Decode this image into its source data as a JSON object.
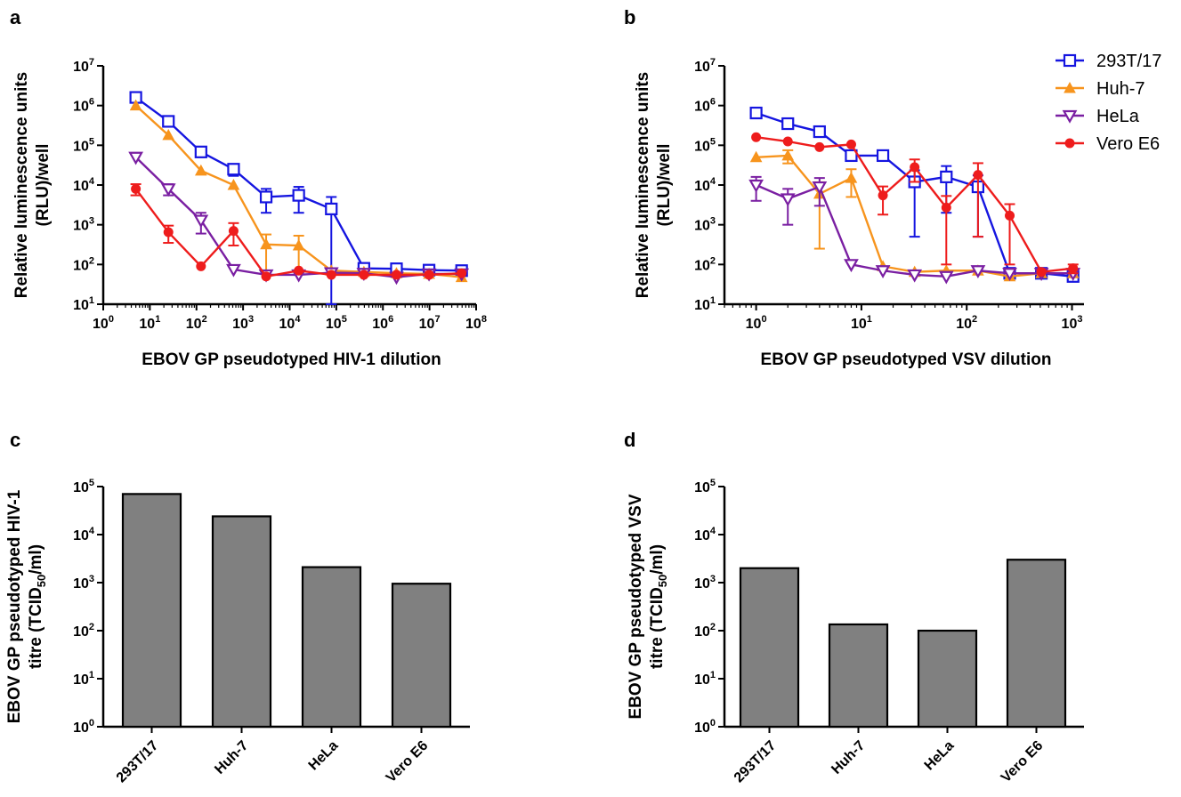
{
  "colors": {
    "293T/17": "#1515e0",
    "Huh-7": "#f7941d",
    "HeLa": "#7a1fa2",
    "Vero E6": "#ee1c1c",
    "bar": "#808080"
  },
  "legend": {
    "placement": "top-right of panel b",
    "items": [
      {
        "label": "293T/17",
        "marker": "open-square"
      },
      {
        "label": "Huh-7",
        "marker": "filled-triangle-up"
      },
      {
        "label": "HeLa",
        "marker": "open-triangle-down"
      },
      {
        "label": "Vero E6",
        "marker": "filled-circle"
      }
    ]
  },
  "chart_data": [
    {
      "panel": "a",
      "type": "line",
      "xscale": "log",
      "yscale": "log",
      "xlim": [
        1,
        100000000
      ],
      "ylim": [
        10,
        10000000
      ],
      "xlabel": "EBOV GP pseudotyped HIV-1 dilution",
      "ylabel_lines": [
        "Relative luminescence units",
        "(RLU)/well"
      ],
      "xticks": [
        {
          "base": "10",
          "exp": "0"
        },
        {
          "base": "10",
          "exp": "1"
        },
        {
          "base": "10",
          "exp": "2"
        },
        {
          "base": "10",
          "exp": "3"
        },
        {
          "base": "10",
          "exp": "4"
        },
        {
          "base": "10",
          "exp": "5"
        },
        {
          "base": "10",
          "exp": "6"
        },
        {
          "base": "10",
          "exp": "7"
        },
        {
          "base": "10",
          "exp": "8"
        }
      ],
      "yticks": [
        {
          "base": "10",
          "exp": "1"
        },
        {
          "base": "10",
          "exp": "2"
        },
        {
          "base": "10",
          "exp": "3"
        },
        {
          "base": "10",
          "exp": "4"
        },
        {
          "base": "10",
          "exp": "5"
        },
        {
          "base": "10",
          "exp": "6"
        },
        {
          "base": "10",
          "exp": "7"
        }
      ],
      "x": [
        5,
        25,
        125,
        625,
        3125,
        15625,
        78125,
        390625,
        1953125,
        9765625,
        48828125
      ],
      "series": [
        {
          "name": "293T/17",
          "values": [
            1600000,
            400000,
            68000,
            25000,
            5000,
            5500,
            2500,
            80,
            78,
            72,
            70
          ],
          "err": [
            0,
            0,
            0,
            8000,
            3000,
            3500,
            2500,
            0,
            0,
            0,
            0
          ]
        },
        {
          "name": "Huh-7",
          "values": [
            1000000,
            180000,
            23000,
            10000,
            320,
            300,
            70,
            65,
            60,
            58,
            48
          ],
          "err": [
            0,
            0,
            0,
            0,
            250,
            230,
            0,
            0,
            0,
            0,
            0
          ]
        },
        {
          "name": "HeLa",
          "values": [
            50000,
            8000,
            1300,
            75,
            55,
            55,
            62,
            60,
            48,
            58,
            58
          ],
          "err": [
            0,
            2500,
            700,
            0,
            0,
            0,
            0,
            0,
            0,
            0,
            0
          ]
        },
        {
          "name": "Vero E6",
          "values": [
            8000,
            650,
            90,
            700,
            50,
            70,
            55,
            55,
            55,
            55,
            60
          ],
          "err": [
            2500,
            300,
            0,
            400,
            0,
            0,
            0,
            0,
            0,
            0,
            0
          ]
        }
      ]
    },
    {
      "panel": "b",
      "type": "line",
      "xscale": "log",
      "yscale": "log",
      "xlim": [
        0.5,
        1300
      ],
      "ylim": [
        10,
        10000000
      ],
      "xlabel": "EBOV GP pseudotyped VSV dilution",
      "ylabel_lines": [
        "Relative luminescence units",
        "(RLU)/well"
      ],
      "xticks": [
        {
          "base": "10",
          "exp": "0"
        },
        {
          "base": "10",
          "exp": "1"
        },
        {
          "base": "10",
          "exp": "2"
        },
        {
          "base": "10",
          "exp": "3"
        }
      ],
      "yticks": [
        {
          "base": "10",
          "exp": "1"
        },
        {
          "base": "10",
          "exp": "2"
        },
        {
          "base": "10",
          "exp": "3"
        },
        {
          "base": "10",
          "exp": "4"
        },
        {
          "base": "10",
          "exp": "5"
        },
        {
          "base": "10",
          "exp": "6"
        },
        {
          "base": "10",
          "exp": "7"
        }
      ],
      "x": [
        1,
        2,
        4,
        8,
        16,
        32,
        64,
        128,
        256,
        512,
        1024
      ],
      "series": [
        {
          "name": "293T/17",
          "values": [
            650000,
            350000,
            220000,
            55000,
            55000,
            12000,
            16000,
            9000,
            60,
            60,
            50
          ],
          "err": [
            0,
            0,
            0,
            0,
            0,
            11500,
            14000,
            8500,
            0,
            0,
            0
          ]
        },
        {
          "name": "Huh-7",
          "values": [
            50000,
            55000,
            6000,
            15000,
            90,
            65,
            70,
            70,
            50,
            60,
            60
          ],
          "err": [
            0,
            20000,
            5750,
            10000,
            0,
            0,
            0,
            0,
            0,
            0,
            0
          ]
        },
        {
          "name": "HeLa",
          "values": [
            10000,
            4500,
            9000,
            100,
            70,
            55,
            50,
            70,
            60,
            60,
            60
          ],
          "err": [
            6000,
            3500,
            6000,
            0,
            0,
            0,
            0,
            0,
            0,
            0,
            0
          ]
        },
        {
          "name": "Vero E6",
          "values": [
            160000,
            125000,
            90000,
            105000,
            5500,
            28000,
            2700,
            18000,
            1700,
            65,
            80
          ],
          "err": [
            0,
            0,
            0,
            0,
            3700,
            16000,
            2600,
            17500,
            1600,
            0,
            20
          ]
        }
      ]
    },
    {
      "panel": "c",
      "type": "bar",
      "yscale": "log",
      "ylim": [
        1,
        100000
      ],
      "categories": [
        "293T/17",
        "Huh-7",
        "HeLa",
        "Vero E6"
      ],
      "values": [
        70000,
        24000,
        2100,
        950
      ],
      "ylabel_lines": [
        "EBOV GP pseudotyped HIV-1",
        "titre (TCID50/ml)"
      ],
      "yticks": [
        {
          "base": "10",
          "exp": "0"
        },
        {
          "base": "10",
          "exp": "1"
        },
        {
          "base": "10",
          "exp": "2"
        },
        {
          "base": "10",
          "exp": "3"
        },
        {
          "base": "10",
          "exp": "4"
        },
        {
          "base": "10",
          "exp": "5"
        }
      ]
    },
    {
      "panel": "d",
      "type": "bar",
      "yscale": "log",
      "ylim": [
        1,
        100000
      ],
      "categories": [
        "293T/17",
        "Huh-7",
        "HeLa",
        "Vero E6"
      ],
      "values": [
        2000,
        135,
        100,
        3000
      ],
      "ylabel_lines": [
        "EBOV GP pseudotyped VSV",
        "titre (TCID50/ml)"
      ],
      "yticks": [
        {
          "base": "10",
          "exp": "0"
        },
        {
          "base": "10",
          "exp": "1"
        },
        {
          "base": "10",
          "exp": "2"
        },
        {
          "base": "10",
          "exp": "3"
        },
        {
          "base": "10",
          "exp": "4"
        },
        {
          "base": "10",
          "exp": "5"
        }
      ]
    }
  ]
}
